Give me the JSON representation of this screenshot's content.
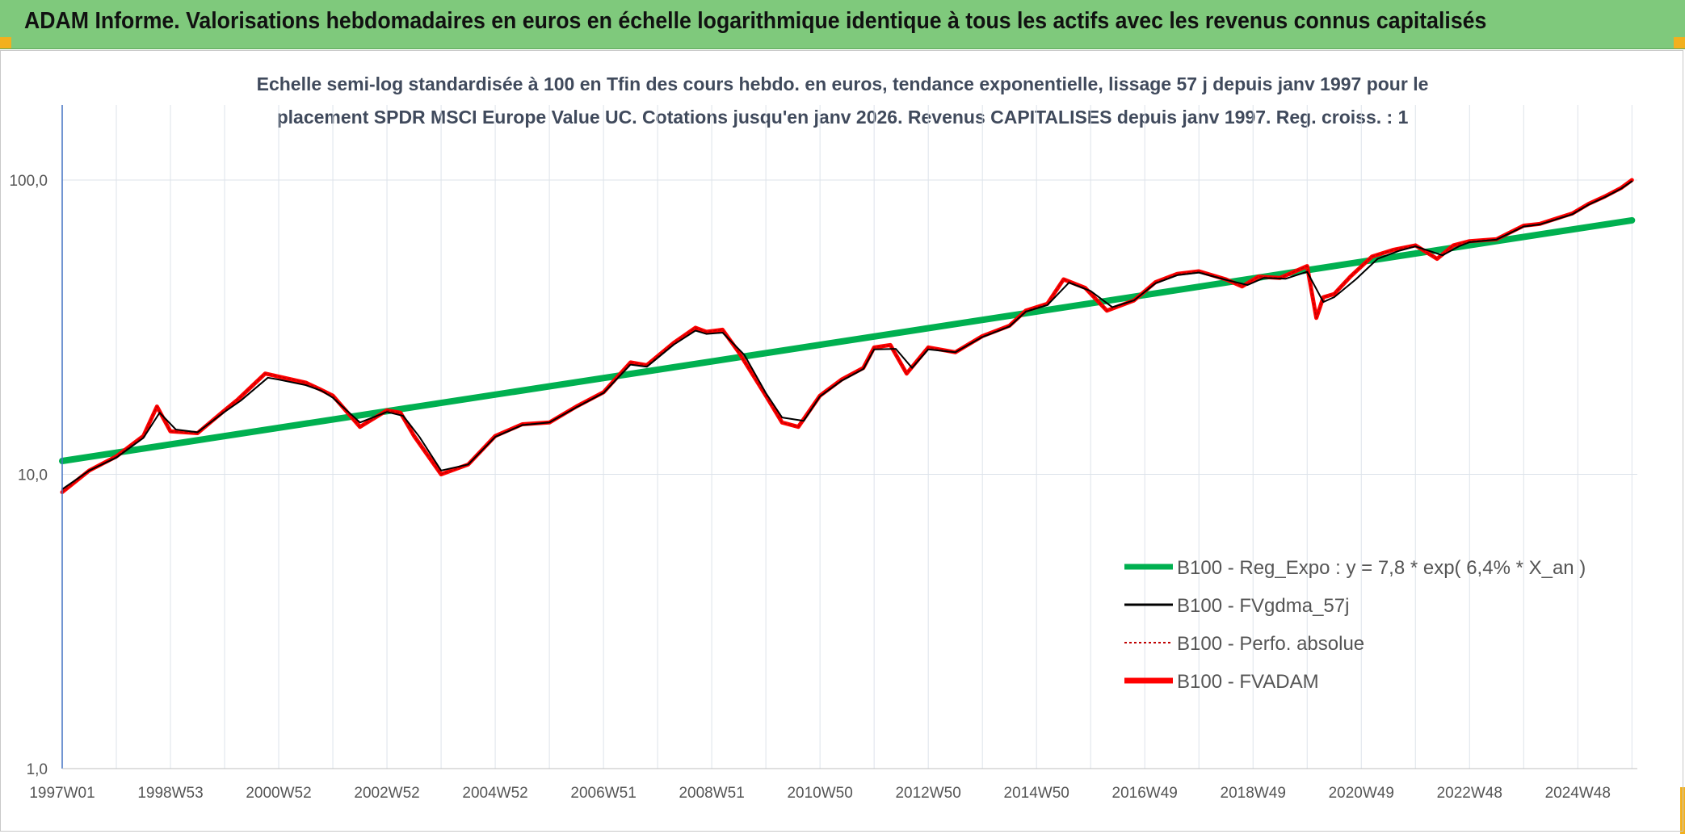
{
  "header": {
    "title": "ADAM Informe. Valorisations hebdomadaires en euros en échelle logarithmique identique à tous les actifs avec les revenus connus capitalisés"
  },
  "colors": {
    "header_bg": "#7fc97c",
    "corner_accent": "#f2b01e",
    "trend": "#00b050",
    "fvadam": "#ff0000",
    "perfo": "#c00000",
    "gdma": "#000000"
  },
  "chart_data": {
    "type": "line",
    "y_scale": "log",
    "subtitle_line1": "Echelle semi-log standardisée à 100 en Tfin des cours hebdo. en euros, tendance exponentielle, lissage 57 j depuis janv 1997 pour le",
    "subtitle_line2": "placement SPDR MSCI Europe Value UC. Cotations jusqu'en janv 2026. Revenus CAPITALISES depuis janv 1997. Reg. croiss. : 1",
    "ylim": [
      1,
      180
    ],
    "xlim": [
      1997.0,
      2026.1
    ],
    "y_ticks": [
      {
        "value": 1,
        "label": "1,0"
      },
      {
        "value": 10,
        "label": "10,0"
      },
      {
        "value": 100,
        "label": "100,0"
      }
    ],
    "x_ticks": [
      {
        "value": 1997.0,
        "label": "1997W01"
      },
      {
        "value": 1999.0,
        "label": "1998W53"
      },
      {
        "value": 2001.0,
        "label": "2000W52"
      },
      {
        "value": 2003.0,
        "label": "2002W52"
      },
      {
        "value": 2005.0,
        "label": "2004W52"
      },
      {
        "value": 2007.0,
        "label": "2006W51"
      },
      {
        "value": 2009.0,
        "label": "2008W51"
      },
      {
        "value": 2011.0,
        "label": "2010W50"
      },
      {
        "value": 2013.0,
        "label": "2012W50"
      },
      {
        "value": 2015.0,
        "label": "2014W50"
      },
      {
        "value": 2017.0,
        "label": "2016W49"
      },
      {
        "value": 2019.0,
        "label": "2018W49"
      },
      {
        "value": 2021.0,
        "label": "2020W49"
      },
      {
        "value": 2023.0,
        "label": "2022W48"
      },
      {
        "value": 2025.0,
        "label": "2024W48"
      }
    ],
    "legend": [
      {
        "name": "B100 - Reg_Expo : y = 7,8 * exp( 6,4% *  X_an )",
        "color": "#00b050",
        "style": "thick"
      },
      {
        "name": "B100 - FVgdma_57j",
        "color": "#000000",
        "style": "solid"
      },
      {
        "name": "B100 - Perfo. absolue",
        "color": "#c00000",
        "style": "dotted"
      },
      {
        "name": "B100 - FVADAM",
        "color": "#ff0000",
        "style": "thick"
      }
    ],
    "series": [
      {
        "name": "B100 - Reg_Expo : y = 7,8 * exp( 6,4% *  X_an )",
        "x": [
          1997.0,
          2026.0
        ],
        "y": [
          11.1,
          73.0
        ]
      },
      {
        "name": "B100 - FVADAM",
        "x": [
          1997.0,
          1997.5,
          1998.0,
          1998.5,
          1998.75,
          1999.0,
          1999.5,
          2000.0,
          2000.25,
          2000.75,
          2001.0,
          2001.5,
          2001.75,
          2002.0,
          2002.5,
          2003.0,
          2003.25,
          2003.5,
          2004.0,
          2004.5,
          2005.0,
          2005.5,
          2006.0,
          2006.5,
          2007.0,
          2007.5,
          2007.8,
          2008.3,
          2008.7,
          2008.9,
          2009.2,
          2009.5,
          2010.0,
          2010.3,
          2010.6,
          2011.0,
          2011.4,
          2011.8,
          2012.0,
          2012.3,
          2012.6,
          2013.0,
          2013.5,
          2014.0,
          2014.5,
          2014.8,
          2015.2,
          2015.5,
          2015.9,
          2016.3,
          2016.8,
          2017.2,
          2017.6,
          2018.0,
          2018.5,
          2018.8,
          2019.1,
          2019.5,
          2020.0,
          2020.17,
          2020.3,
          2020.5,
          2020.8,
          2021.2,
          2021.6,
          2022.0,
          2022.4,
          2022.7,
          2023.0,
          2023.5,
          2024.0,
          2024.3,
          2024.6,
          2024.9,
          2025.2,
          2025.5,
          2025.8,
          2026.0
        ],
        "y": [
          8.7,
          10.3,
          11.5,
          13.5,
          17.0,
          14.0,
          13.8,
          16.5,
          18.0,
          22.0,
          21.5,
          20.5,
          19.5,
          18.5,
          14.5,
          16.5,
          16.2,
          13.5,
          10.0,
          10.8,
          13.5,
          14.8,
          15.0,
          17.0,
          19.0,
          24.0,
          23.5,
          28.0,
          31.5,
          30.5,
          31.0,
          26.0,
          18.5,
          15.0,
          14.5,
          18.5,
          21.0,
          23.0,
          27.0,
          27.5,
          22.0,
          27.0,
          26.0,
          29.5,
          32.0,
          36.0,
          38.0,
          46.0,
          43.0,
          36.0,
          39.0,
          45.0,
          48.0,
          49.0,
          46.0,
          43.5,
          47.0,
          46.5,
          51.0,
          34.0,
          40.0,
          41.0,
          47.0,
          55.0,
          58.0,
          60.0,
          54.0,
          60.0,
          62.0,
          63.0,
          70.0,
          71.0,
          74.0,
          77.0,
          83.0,
          88.0,
          94.0,
          100.0
        ]
      },
      {
        "name": "B100 - Perfo. absolue",
        "x": [
          1997.0,
          1997.5,
          1998.0,
          1998.5,
          1998.75,
          1999.0,
          1999.5,
          2000.0,
          2000.25,
          2000.75,
          2001.0,
          2001.5,
          2001.75,
          2002.0,
          2002.5,
          2003.0,
          2003.25,
          2003.5,
          2004.0,
          2004.5,
          2005.0,
          2005.5,
          2006.0,
          2006.5,
          2007.0,
          2007.5,
          2007.8,
          2008.3,
          2008.7,
          2008.9,
          2009.2,
          2009.5,
          2010.0,
          2010.3,
          2010.6,
          2011.0,
          2011.4,
          2011.8,
          2012.0,
          2012.3,
          2012.6,
          2013.0,
          2013.5,
          2014.0,
          2014.5,
          2014.8,
          2015.2,
          2015.5,
          2015.9,
          2016.3,
          2016.8,
          2017.2,
          2017.6,
          2018.0,
          2018.5,
          2018.8,
          2019.1,
          2019.5,
          2020.0,
          2020.17,
          2020.3,
          2020.5,
          2020.8,
          2021.2,
          2021.6,
          2022.0,
          2022.4,
          2022.7,
          2023.0,
          2023.5,
          2024.0,
          2024.3,
          2024.6,
          2024.9,
          2025.2,
          2025.5,
          2025.8,
          2026.0
        ],
        "y": [
          8.7,
          10.3,
          11.5,
          13.5,
          17.0,
          14.0,
          13.8,
          16.5,
          18.0,
          22.0,
          21.5,
          20.5,
          19.5,
          18.5,
          14.5,
          16.5,
          16.2,
          13.5,
          10.0,
          10.8,
          13.5,
          14.8,
          15.0,
          17.0,
          19.0,
          24.0,
          23.5,
          28.0,
          31.5,
          30.5,
          31.0,
          26.0,
          18.5,
          15.0,
          14.5,
          18.5,
          21.0,
          23.0,
          27.0,
          27.5,
          22.0,
          27.0,
          26.0,
          29.5,
          32.0,
          36.0,
          38.0,
          46.0,
          43.0,
          36.0,
          39.0,
          45.0,
          48.0,
          49.0,
          46.0,
          43.5,
          47.0,
          46.5,
          51.0,
          34.0,
          40.0,
          41.0,
          47.0,
          55.0,
          58.0,
          60.0,
          54.0,
          60.0,
          62.0,
          63.0,
          70.0,
          71.0,
          74.0,
          77.0,
          83.0,
          88.0,
          94.0,
          100.0
        ]
      },
      {
        "name": "B100 - FVgdma_57j",
        "x": [
          1997.0,
          1997.5,
          1998.0,
          1998.5,
          1998.8,
          1999.1,
          1999.5,
          2000.0,
          2000.3,
          2000.8,
          2001.0,
          2001.5,
          2001.8,
          2002.0,
          2002.5,
          2003.0,
          2003.3,
          2003.6,
          2004.0,
          2004.5,
          2005.0,
          2005.5,
          2006.0,
          2006.5,
          2007.0,
          2007.5,
          2007.8,
          2008.3,
          2008.7,
          2008.9,
          2009.2,
          2009.6,
          2010.0,
          2010.3,
          2010.7,
          2011.0,
          2011.4,
          2011.8,
          2012.0,
          2012.4,
          2012.7,
          2013.0,
          2013.5,
          2014.0,
          2014.5,
          2014.8,
          2015.2,
          2015.6,
          2016.0,
          2016.4,
          2016.8,
          2017.2,
          2017.6,
          2018.0,
          2018.5,
          2018.9,
          2019.2,
          2019.6,
          2020.0,
          2020.3,
          2020.5,
          2020.9,
          2021.3,
          2021.7,
          2022.0,
          2022.5,
          2022.8,
          2023.0,
          2023.5,
          2024.0,
          2024.3,
          2024.6,
          2024.9,
          2025.2,
          2025.5,
          2025.8,
          2026.0
        ],
        "y": [
          8.9,
          10.3,
          11.4,
          13.3,
          16.2,
          14.2,
          13.9,
          16.3,
          17.8,
          21.3,
          21.0,
          20.1,
          19.2,
          18.2,
          15.0,
          16.3,
          15.8,
          13.4,
          10.3,
          10.8,
          13.4,
          14.7,
          15.0,
          16.9,
          18.9,
          23.6,
          23.2,
          27.6,
          30.8,
          30.0,
          30.3,
          25.5,
          18.9,
          15.6,
          15.2,
          18.4,
          20.8,
          22.8,
          26.6,
          26.7,
          23.0,
          26.6,
          26.0,
          29.3,
          31.8,
          35.7,
          37.6,
          44.8,
          42.0,
          37.0,
          39.0,
          44.6,
          47.5,
          48.5,
          45.8,
          44.0,
          46.5,
          46.2,
          48.8,
          38.5,
          40.0,
          46.0,
          54.0,
          57.5,
          59.5,
          55.5,
          59.5,
          61.5,
          62.8,
          69.5,
          70.7,
          73.5,
          76.5,
          82.5,
          87.5,
          93.5,
          99.0
        ]
      }
    ]
  }
}
